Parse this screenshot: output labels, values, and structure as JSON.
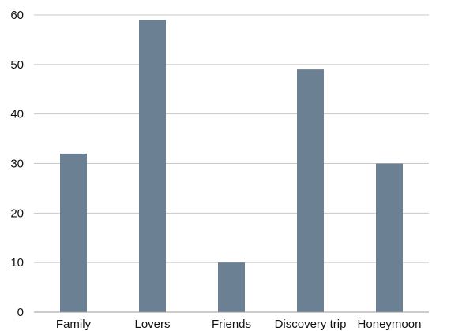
{
  "chart_data": {
    "type": "bar",
    "title": "",
    "xlabel": "",
    "ylabel": "",
    "categories": [
      "Family",
      "Lovers",
      "Friends",
      "Discovery trip",
      "Honeymoon"
    ],
    "values": [
      32,
      59,
      10,
      49,
      30
    ],
    "ylim": [
      0,
      60
    ],
    "yticks": [
      0,
      10,
      20,
      30,
      40,
      50,
      60
    ],
    "grid": true,
    "legend": "none",
    "bar_color": "#6b8093"
  }
}
